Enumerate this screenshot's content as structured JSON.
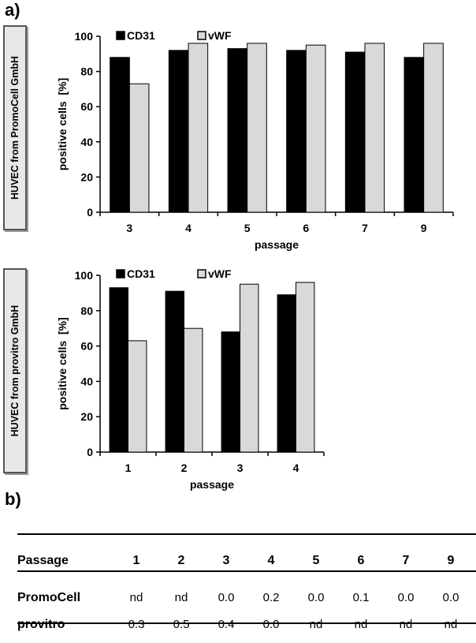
{
  "panels": {
    "a": "a)",
    "b": "b)"
  },
  "chart_data": [
    {
      "type": "bar",
      "side_label": "HUVEC from PromoCell GmbH",
      "categories": [
        "3",
        "4",
        "5",
        "6",
        "7",
        "9"
      ],
      "series": [
        {
          "name": "CD31",
          "color": "#000000",
          "values": [
            88,
            92,
            93,
            92,
            91,
            88
          ]
        },
        {
          "name": "vWF",
          "color": "#d9d9d9",
          "values": [
            73,
            96,
            96,
            95,
            96,
            96
          ]
        }
      ],
      "xlabel": "passage",
      "ylabel": "positive cells  [%]",
      "ylim": [
        0,
        100
      ],
      "yticks": [
        0,
        20,
        40,
        60,
        80,
        100
      ],
      "legend": "top"
    },
    {
      "type": "bar",
      "side_label": "HUVEC from provitro GmbH",
      "categories": [
        "1",
        "2",
        "3",
        "4"
      ],
      "series": [
        {
          "name": "CD31",
          "color": "#000000",
          "values": [
            93,
            91,
            68,
            89
          ]
        },
        {
          "name": "vWF",
          "color": "#d9d9d9",
          "values": [
            63,
            70,
            95,
            96
          ]
        }
      ],
      "xlabel": "passage",
      "ylabel": "positive cells  [%]",
      "ylim": [
        0,
        100
      ],
      "yticks": [
        0,
        20,
        40,
        60,
        80,
        100
      ],
      "legend": "top"
    }
  ],
  "table": {
    "header_label": "Passage",
    "columns": [
      "1",
      "2",
      "3",
      "4",
      "5",
      "6",
      "7",
      "9"
    ],
    "rows": [
      {
        "label": "PromoCell",
        "values": [
          "nd",
          "nd",
          "0.0",
          "0.2",
          "0.0",
          "0.1",
          "0.0",
          "0.0"
        ]
      },
      {
        "label": "provitro",
        "values": [
          "0.3",
          "0.5",
          "0.4",
          "0.0",
          "nd",
          "nd",
          "nd",
          "nd"
        ]
      }
    ]
  }
}
